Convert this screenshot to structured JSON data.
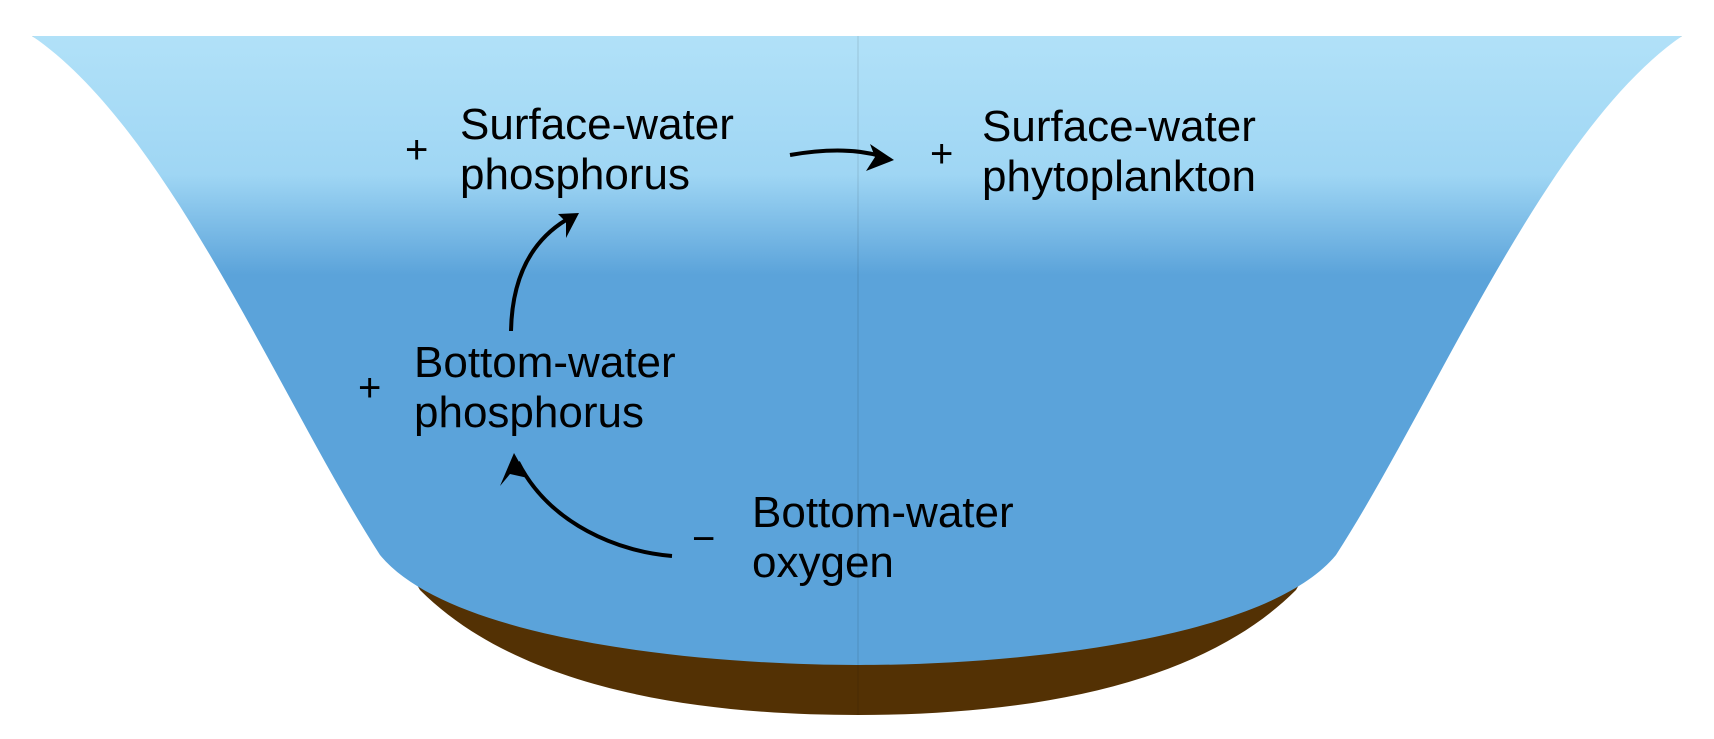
{
  "colors": {
    "water_surface": "#b1e1f8",
    "water_deep": "#5ba3da",
    "sediment": "#533104",
    "text": "#000000"
  },
  "nodes": {
    "surface_phosphorus": {
      "sign": "+",
      "line1": "Surface-water",
      "line2": "phosphorus"
    },
    "surface_phytoplankton": {
      "sign": "+",
      "line1": "Surface-water",
      "line2": "phytoplankton"
    },
    "bottom_phosphorus": {
      "sign": "+",
      "line1": "Bottom-water",
      "line2": "phosphorus"
    },
    "bottom_oxygen": {
      "sign": "−",
      "line1": "Bottom-water",
      "line2": "oxygen"
    }
  },
  "edges": [
    {
      "from": "bottom_oxygen",
      "to": "bottom_phosphorus"
    },
    {
      "from": "bottom_phosphorus",
      "to": "surface_phosphorus"
    },
    {
      "from": "surface_phosphorus",
      "to": "surface_phytoplankton"
    }
  ]
}
